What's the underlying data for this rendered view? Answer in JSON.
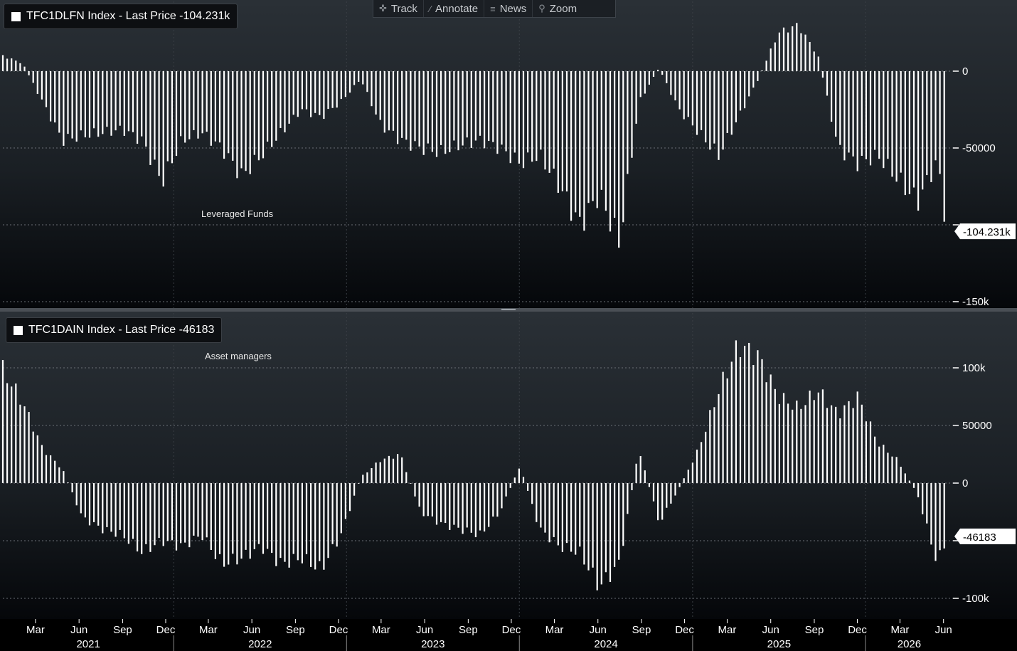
{
  "toolbar": {
    "track": "Track",
    "annotate": "Annotate",
    "news": "News",
    "zoom": "Zoom"
  },
  "panels": [
    {
      "legend": "TFC1DLFN Index - Last Price -104.231k",
      "annotation": "Leveraged Funds",
      "last_label": "-104.231k"
    },
    {
      "legend": "TFC1DAIN Index - Last Price -46183",
      "annotation": "Asset managers",
      "last_label": "-46183"
    }
  ],
  "colors": {
    "bars": "#ffffff",
    "background_top": "#2a3036",
    "background_bottom": "#05070a",
    "grid": "#6a6f75"
  },
  "chart_data": [
    {
      "type": "bar",
      "title": "TFC1DLFN Index - Last Price -104.231k",
      "series": [
        {
          "name": "Leveraged Funds",
          "x": [
            "2021-01-05",
            "2021-02-16",
            "2021-03-30",
            "2021-05-11",
            "2021-06-22",
            "2021-08-03",
            "2021-09-14",
            "2021-10-26",
            "2021-12-07",
            "2022-01-18",
            "2022-03-01",
            "2022-04-12",
            "2022-05-24",
            "2022-07-05",
            "2022-08-16",
            "2022-09-27",
            "2022-11-08",
            "2022-12-20",
            "2023-01-31",
            "2023-03-14",
            "2023-04-25",
            "2023-06-06",
            "2023-07-18",
            "2023-08-29",
            "2023-10-10",
            "2023-11-21",
            "2024-01-02",
            "2024-02-13",
            "2024-03-26",
            "2024-05-07",
            "2024-06-18",
            "2024-07-30",
            "2024-09-10",
            "2024-10-22",
            "2024-12-03",
            "2025-01-14",
            "2025-02-25",
            "2025-04-08",
            "2025-05-20",
            "2025-07-01",
            "2025-08-12",
            "2025-09-23",
            "2025-11-04",
            "2025-12-16",
            "2026-01-27",
            "2026-03-10",
            "2026-04-21",
            "2026-06-02",
            "2026-06-23"
          ],
          "values": [
            10000,
            5000,
            -20000,
            -45000,
            -42000,
            -40000,
            -38000,
            -45000,
            -72000,
            -45000,
            -40000,
            -50000,
            -68000,
            -55000,
            -40000,
            -25000,
            -30000,
            -20000,
            -5000,
            -35000,
            -45000,
            -50000,
            -53000,
            -48000,
            -45000,
            -50000,
            -60000,
            -55000,
            -75000,
            -100000,
            -80000,
            -112000,
            -20000,
            2000,
            -25000,
            -40000,
            -55000,
            -30000,
            -5000,
            25000,
            30000,
            10000,
            -50000,
            -60000,
            -55000,
            -70000,
            -85000,
            -58000,
            -104231
          ]
        }
      ],
      "ylim": [
        -150000,
        40000
      ],
      "yticks": [
        0,
        -50000,
        -100000,
        -150000
      ],
      "ytick_labels": [
        "0",
        "-50000",
        "",
        "-150k"
      ]
    },
    {
      "type": "bar",
      "title": "TFC1DAIN Index - Last Price -46183",
      "series": [
        {
          "name": "Asset managers",
          "x": [
            "2021-01-05",
            "2021-02-16",
            "2021-03-30",
            "2021-05-11",
            "2021-06-22",
            "2021-08-03",
            "2021-09-14",
            "2021-10-26",
            "2021-12-07",
            "2022-01-18",
            "2022-03-01",
            "2022-04-12",
            "2022-05-24",
            "2022-07-05",
            "2022-08-16",
            "2022-09-27",
            "2022-11-08",
            "2022-12-20",
            "2023-01-31",
            "2023-03-14",
            "2023-04-25",
            "2023-06-06",
            "2023-07-18",
            "2023-08-29",
            "2023-10-10",
            "2023-11-21",
            "2024-01-02",
            "2024-02-13",
            "2024-03-26",
            "2024-05-07",
            "2024-06-18",
            "2024-07-30",
            "2024-09-10",
            "2024-10-22",
            "2024-12-03",
            "2025-01-14",
            "2025-02-25",
            "2025-04-08",
            "2025-05-20",
            "2025-07-01",
            "2025-08-12",
            "2025-09-23",
            "2025-11-04",
            "2025-12-16",
            "2026-01-27",
            "2026-03-10",
            "2026-04-21",
            "2026-06-02",
            "2026-06-23"
          ],
          "values": [
            98000,
            70000,
            30000,
            12000,
            -30000,
            -40000,
            -45000,
            -60000,
            -50000,
            -55000,
            -45000,
            -70000,
            -65000,
            -55000,
            -70000,
            -65000,
            -75000,
            -45000,
            5000,
            20000,
            25000,
            -25000,
            -35000,
            -40000,
            -45000,
            -25000,
            15000,
            -40000,
            -55000,
            -60000,
            -90000,
            -70000,
            30000,
            -35000,
            -5000,
            30000,
            80000,
            120000,
            110000,
            75000,
            65000,
            80000,
            60000,
            75000,
            35000,
            20000,
            -10000,
            -70000,
            -46183
          ]
        }
      ],
      "ylim": [
        -120000,
        145000
      ],
      "yticks": [
        100000,
        50000,
        0,
        -50000,
        -100000
      ],
      "ytick_labels": [
        "100k",
        "50000",
        "0",
        "",
        "-100k"
      ]
    }
  ],
  "xaxis": {
    "months": [
      "Mar",
      "Jun",
      "Sep",
      "Dec",
      "Mar",
      "Jun",
      "Sep",
      "Dec",
      "Mar",
      "Jun",
      "Sep",
      "Dec",
      "Mar",
      "Jun",
      "Sep",
      "Dec",
      "Mar",
      "Jun",
      "Sep",
      "Dec",
      "Mar",
      "Jun"
    ],
    "years": [
      "2021",
      "2022",
      "2023",
      "2024",
      "2025",
      "2026"
    ]
  }
}
